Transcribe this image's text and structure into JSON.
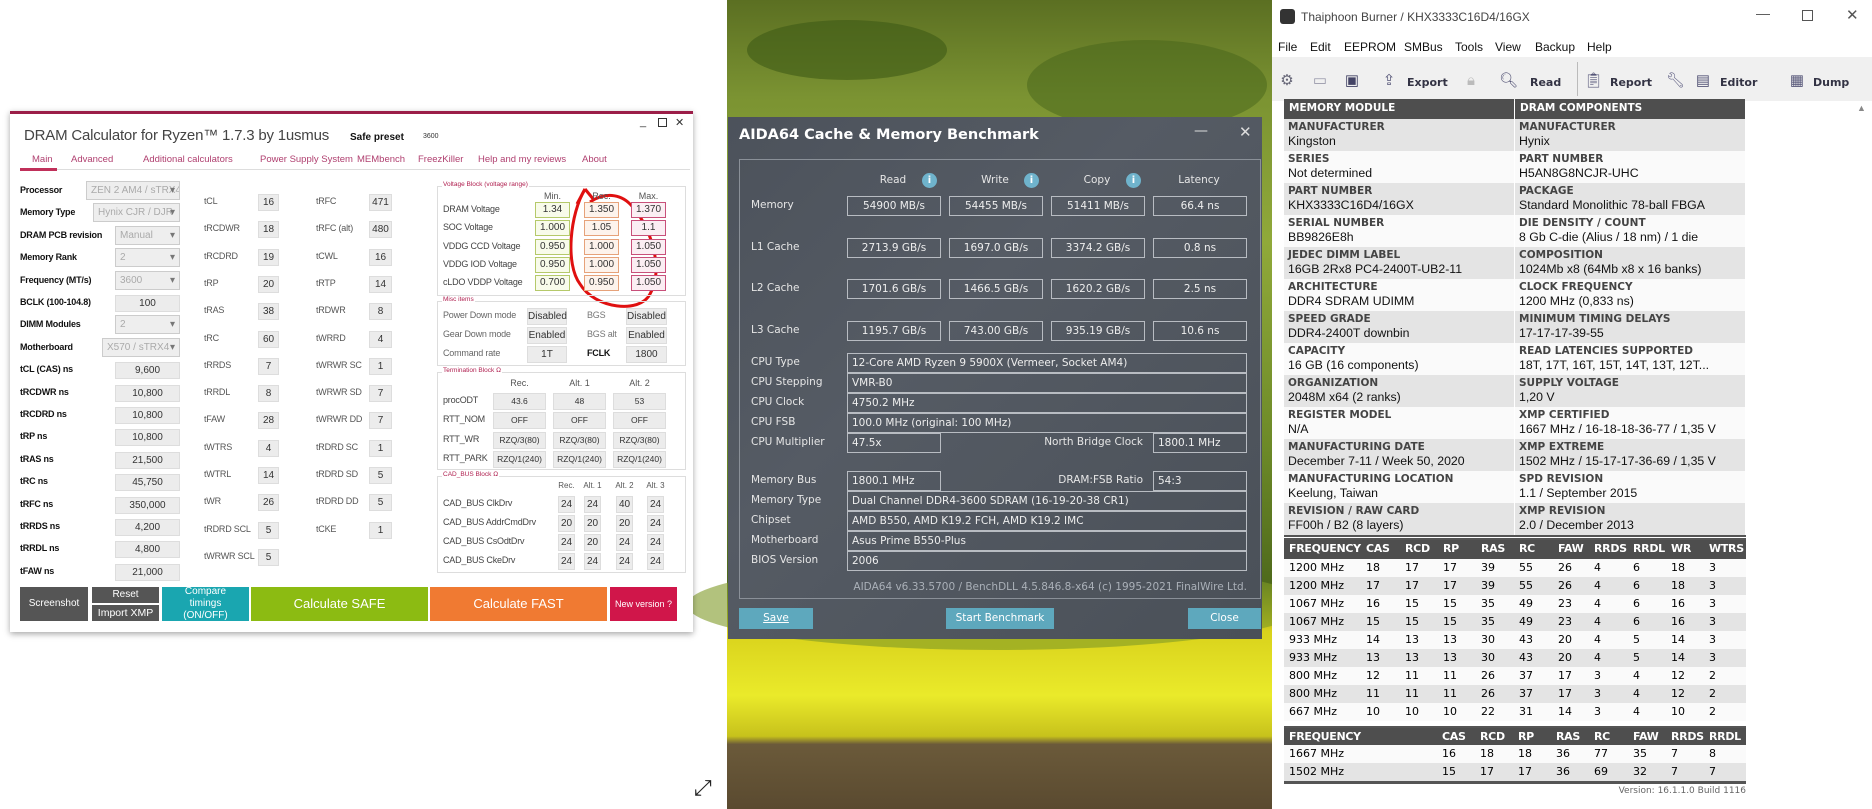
{
  "dram": {
    "title": "DRAM Calculator for Ryzen™ 1.7.3 by 1usmus",
    "safe_preset_label": "Safe preset",
    "safe_preset_value": "3600",
    "tabs": [
      "Main",
      "Advanced",
      "Additional calculators",
      "Power Supply System",
      "MEMbench",
      "FreezKiller",
      "Help and my reviews",
      "About"
    ],
    "fields": [
      {
        "label": "Processor",
        "value": "ZEN 2 AM4 / sTRX4",
        "type": "dropdown"
      },
      {
        "label": "Memory Type",
        "value": "Hynix CJR / DJR",
        "type": "dropdown"
      },
      {
        "label": "DRAM PCB revision",
        "value": "Manual",
        "type": "dropdown"
      },
      {
        "label": "Memory Rank",
        "value": "2",
        "type": "dropdown"
      },
      {
        "label": "Frequency (MT/s)",
        "value": "3600",
        "type": "dropdown"
      },
      {
        "label": "BCLK (100-104.8)",
        "value": "100",
        "type": "input"
      },
      {
        "label": "DIMM Modules",
        "value": "2",
        "type": "dropdown"
      },
      {
        "label": "Motherboard",
        "value": "X570 / sTRX4",
        "type": "dropdown"
      },
      {
        "label": "tCL (CAS) ns",
        "value": "9,600",
        "type": "output"
      },
      {
        "label": "tRCDWR ns",
        "value": "10,800",
        "type": "output"
      },
      {
        "label": "tRCDRD ns",
        "value": "10,800",
        "type": "output"
      },
      {
        "label": "tRP ns",
        "value": "10,800",
        "type": "output"
      },
      {
        "label": "tRAS ns",
        "value": "21,500",
        "type": "output"
      },
      {
        "label": "tRC ns",
        "value": "45,750",
        "type": "output"
      },
      {
        "label": "tRFC ns",
        "value": "350,000",
        "type": "output"
      },
      {
        "label": "tRRDS ns",
        "value": "4,200",
        "type": "output"
      },
      {
        "label": "tRRDL ns",
        "value": "4,800",
        "type": "output"
      },
      {
        "label": "tFAW ns",
        "value": "21,000",
        "type": "output"
      }
    ],
    "timings1": [
      {
        "label": "tCL",
        "value": "16"
      },
      {
        "label": "tRCDWR",
        "value": "18"
      },
      {
        "label": "tRCDRD",
        "value": "19"
      },
      {
        "label": "tRP",
        "value": "20"
      },
      {
        "label": "tRAS",
        "value": "38"
      },
      {
        "label": "tRC",
        "value": "60"
      },
      {
        "label": "tRRDS",
        "value": "7"
      },
      {
        "label": "tRRDL",
        "value": "8"
      },
      {
        "label": "tFAW",
        "value": "28"
      },
      {
        "label": "tWTRS",
        "value": "4"
      },
      {
        "label": "tWTRL",
        "value": "14"
      },
      {
        "label": "tWR",
        "value": "26"
      },
      {
        "label": "tRDRD SCL",
        "value": "5"
      },
      {
        "label": "tWRWR SCL",
        "value": "5"
      }
    ],
    "timings2": [
      {
        "label": "tRFC",
        "value": "471"
      },
      {
        "label": "tRFC (alt)",
        "value": "480"
      },
      {
        "label": "tCWL",
        "value": "16"
      },
      {
        "label": "tRTP",
        "value": "14"
      },
      {
        "label": "tRDWR",
        "value": "8"
      },
      {
        "label": "tWRRD",
        "value": "4"
      },
      {
        "label": "tWRWR SC",
        "value": "1"
      },
      {
        "label": "tWRWR SD",
        "value": "7"
      },
      {
        "label": "tWRWR DD",
        "value": "7"
      },
      {
        "label": "tRDRD SC",
        "value": "1"
      },
      {
        "label": "tRDRD SD",
        "value": "5"
      },
      {
        "label": "tRDRD DD",
        "value": "5"
      },
      {
        "label": "tCKE",
        "value": "1"
      }
    ],
    "voltage": {
      "title": "Voltage Block (voltage range)",
      "headers": [
        "Min.",
        "Rec.",
        "Max."
      ],
      "rows": [
        {
          "label": "DRAM Voltage",
          "values": [
            "1.34",
            "1.350",
            "1.370"
          ]
        },
        {
          "label": "SOC Voltage",
          "values": [
            "1.000",
            "1.05",
            "1.1"
          ]
        },
        {
          "label": "VDDG  CCD Voltage",
          "values": [
            "0.950",
            "1.000",
            "1.050"
          ]
        },
        {
          "label": "VDDG  IOD Voltage",
          "values": [
            "0.950",
            "1.000",
            "1.050"
          ]
        },
        {
          "label": "cLDO VDDP Voltage",
          "values": [
            "0.700",
            "0.950",
            "1.050"
          ]
        }
      ]
    },
    "misc": {
      "title": "Misc items",
      "rows": [
        {
          "label": "Power Down mode",
          "value": "Disabled",
          "label2": "BGS",
          "value2": "Disabled"
        },
        {
          "label": "Gear Down mode",
          "value": "Enabled",
          "label2": "BGS alt",
          "value2": "Enabled"
        },
        {
          "label": "Command rate",
          "value": "1T",
          "label2": "FCLK",
          "value2": "1800"
        }
      ]
    },
    "termination": {
      "title": "Termination Block Ω",
      "headers": [
        "Rec.",
        "Alt. 1",
        "Alt. 2"
      ],
      "rows": [
        {
          "label": "procODT",
          "values": [
            "43.6",
            "48",
            "53"
          ]
        },
        {
          "label": "RTT_NOM",
          "values": [
            "OFF",
            "OFF",
            "OFF"
          ]
        },
        {
          "label": "RTT_WR",
          "values": [
            "RZQ/3(80)",
            "RZQ/3(80)",
            "RZQ/3(80)"
          ]
        },
        {
          "label": "RTT_PARK",
          "values": [
            "RZQ/1(240)",
            "RZQ/1(240)",
            "RZQ/1(240)"
          ]
        }
      ]
    },
    "cad": {
      "title": "CAD_BUS Block Ω",
      "headers": [
        "Rec.",
        "Alt. 1",
        "Alt. 2",
        "Alt. 3"
      ],
      "rows": [
        {
          "label": "CAD_BUS ClkDrv",
          "values": [
            "24",
            "24",
            "40",
            "24"
          ]
        },
        {
          "label": "CAD_BUS AddrCmdDrv",
          "values": [
            "20",
            "20",
            "20",
            "24"
          ]
        },
        {
          "label": "CAD_BUS CsOdtDrv",
          "values": [
            "24",
            "20",
            "24",
            "24"
          ]
        },
        {
          "label": "CAD_BUS CkeDrv",
          "values": [
            "24",
            "24",
            "24",
            "24"
          ]
        }
      ]
    },
    "buttons": {
      "screenshot": "Screenshot",
      "reset": "Reset",
      "import_xmp": "Import XMP",
      "compare": "Compare timings (ON/OFF)",
      "safe": "Calculate SAFE",
      "fast": "Calculate FAST",
      "new_version": "New version ?"
    },
    "colors": {
      "accent": "#9b1e48",
      "safe": "#8cbb12",
      "fast": "#f07a32",
      "compare": "#1aa6b0",
      "new_version": "#d0164a",
      "dark": "#555555",
      "annotation": "#e01010"
    }
  },
  "aida": {
    "title": "AIDA64 Cache & Memory Benchmark",
    "headers": [
      "Read",
      "Write",
      "Copy",
      "Latency"
    ],
    "bench": [
      {
        "label": "Memory",
        "values": [
          "54900 MB/s",
          "54455 MB/s",
          "51411 MB/s",
          "66.4 ns"
        ]
      },
      {
        "label": "L1 Cache",
        "values": [
          "2713.9 GB/s",
          "1697.0 GB/s",
          "3374.2 GB/s",
          "0.8 ns"
        ]
      },
      {
        "label": "L2 Cache",
        "values": [
          "1701.6 GB/s",
          "1466.5 GB/s",
          "1620.2 GB/s",
          "2.5 ns"
        ]
      },
      {
        "label": "L3 Cache",
        "values": [
          "1195.7 GB/s",
          "743.00 GB/s",
          "935.19 GB/s",
          "10.6 ns"
        ]
      }
    ],
    "cpu": [
      {
        "label": "CPU Type",
        "value": "12-Core AMD Ryzen 9 5900X  (Vermeer, Socket AM4)"
      },
      {
        "label": "CPU Stepping",
        "value": "VMR-B0"
      },
      {
        "label": "CPU Clock",
        "value": "4750.2 MHz"
      },
      {
        "label": "CPU FSB",
        "value": "100.0 MHz  (original: 100 MHz)"
      }
    ],
    "cpu_multiplier": {
      "label": "CPU Multiplier",
      "value": "47.5x",
      "label2": "North Bridge Clock",
      "value2": "1800.1 MHz"
    },
    "memory_bus": {
      "label": "Memory Bus",
      "value": "1800.1 MHz",
      "label2": "DRAM:FSB Ratio",
      "value2": "54:3"
    },
    "sys": [
      {
        "label": "Memory Type",
        "value": "Dual Channel DDR4-3600 SDRAM  (16-19-20-38 CR1)"
      },
      {
        "label": "Chipset",
        "value": "AMD B550, AMD K19.2 FCH, AMD K19.2 IMC"
      },
      {
        "label": "Motherboard",
        "value": "Asus Prime B550-Plus"
      },
      {
        "label": "BIOS Version",
        "value": "2006"
      }
    ],
    "footer": "AIDA64 v6.33.5700 / BenchDLL 4.5.846.8-x64  (c) 1995-2021 FinalWire Ltd.",
    "buttons": {
      "save": "Save",
      "start": "Start Benchmark",
      "close": "Close"
    }
  },
  "thaiphoon": {
    "title": "Thaiphoon Burner / KHX3333C16D4/16GX",
    "menu": [
      "File",
      "Edit",
      "EEPROM",
      "SMBus",
      "Tools",
      "View",
      "Backup",
      "Help"
    ],
    "toolbar": {
      "export": "Export",
      "read": "Read",
      "report": "Report",
      "editor": "Editor",
      "dump": "Dump"
    },
    "col_headers": [
      "MEMORY MODULE",
      "DRAM COMPONENTS"
    ],
    "module": [
      [
        "MANUFACTURER",
        "Kingston"
      ],
      [
        "SERIES",
        "Not determined"
      ],
      [
        "PART NUMBER",
        "KHX3333C16D4/16GX"
      ],
      [
        "SERIAL NUMBER",
        "BB9826E8h"
      ],
      [
        "JEDEC DIMM LABEL",
        "16GB 2Rx8 PC4-2400T-UB2-11"
      ],
      [
        "ARCHITECTURE",
        "DDR4 SDRAM UDIMM"
      ],
      [
        "SPEED GRADE",
        "DDR4-2400T downbin"
      ],
      [
        "CAPACITY",
        "16 GB (16 components)"
      ],
      [
        "ORGANIZATION",
        "2048M x64 (2 ranks)"
      ],
      [
        "REGISTER MODEL",
        "N/A"
      ],
      [
        "MANUFACTURING DATE",
        "December 7-11 / Week 50, 2020"
      ],
      [
        "MANUFACTURING LOCATION",
        "Keelung, Taiwan"
      ],
      [
        "REVISION / RAW CARD",
        "FF00h / B2 (8 layers)"
      ]
    ],
    "dram": [
      [
        "MANUFACTURER",
        "Hynix"
      ],
      [
        "PART NUMBER",
        "H5AN8G8NCJR-UHC"
      ],
      [
        "PACKAGE",
        "Standard Monolithic 78-ball FBGA"
      ],
      [
        "DIE DENSITY / COUNT",
        "8 Gb C-die (Alius / 18 nm) / 1 die"
      ],
      [
        "COMPOSITION",
        "1024Mb x8 (64Mb x8 x 16 banks)"
      ],
      [
        "CLOCK FREQUENCY",
        "1200 MHz (0,833 ns)"
      ],
      [
        "MINIMUM TIMING DELAYS",
        "17-17-17-39-55"
      ],
      [
        "READ LATENCIES SUPPORTED",
        "18T, 17T, 16T, 15T, 14T, 13T, 12T..."
      ],
      [
        "SUPPLY VOLTAGE",
        "1,20 V"
      ],
      [
        "XMP CERTIFIED",
        "1667 MHz / 16-18-18-36-77 / 1,35 V"
      ],
      [
        "XMP EXTREME",
        "1502 MHz / 15-17-17-36-69 / 1,35 V"
      ],
      [
        "SPD REVISION",
        "1.1 / September 2015"
      ],
      [
        "XMP REVISION",
        "2.0 / December 2013"
      ]
    ],
    "jedec_table": {
      "headers": [
        "FREQUENCY",
        "CAS",
        "RCD",
        "RP",
        "RAS",
        "RC",
        "FAW",
        "RRDS",
        "RRDL",
        "WR",
        "WTRS"
      ],
      "rows": [
        [
          "1200 MHz",
          "18",
          "17",
          "17",
          "39",
          "55",
          "26",
          "4",
          "6",
          "18",
          "3"
        ],
        [
          "1200 MHz",
          "17",
          "17",
          "17",
          "39",
          "55",
          "26",
          "4",
          "6",
          "18",
          "3"
        ],
        [
          "1067 MHz",
          "16",
          "15",
          "15",
          "35",
          "49",
          "23",
          "4",
          "6",
          "16",
          "3"
        ],
        [
          "1067 MHz",
          "15",
          "15",
          "15",
          "35",
          "49",
          "23",
          "4",
          "6",
          "16",
          "3"
        ],
        [
          "933 MHz",
          "14",
          "13",
          "13",
          "30",
          "43",
          "20",
          "4",
          "5",
          "14",
          "3"
        ],
        [
          "933 MHz",
          "13",
          "13",
          "13",
          "30",
          "43",
          "20",
          "4",
          "5",
          "14",
          "3"
        ],
        [
          "800 MHz",
          "12",
          "11",
          "11",
          "26",
          "37",
          "17",
          "3",
          "4",
          "12",
          "2"
        ],
        [
          "800 MHz",
          "11",
          "11",
          "11",
          "26",
          "37",
          "17",
          "3",
          "4",
          "12",
          "2"
        ],
        [
          "667 MHz",
          "10",
          "10",
          "10",
          "22",
          "31",
          "14",
          "3",
          "4",
          "10",
          "2"
        ]
      ]
    },
    "xmp_table": {
      "headers": [
        "FREQUENCY",
        "CAS",
        "RCD",
        "RP",
        "RAS",
        "RC",
        "FAW",
        "RRDS",
        "RRDL"
      ],
      "rows": [
        [
          "1667 MHz",
          "16",
          "18",
          "18",
          "36",
          "77",
          "35",
          "7",
          "8"
        ],
        [
          "1502 MHz",
          "15",
          "17",
          "17",
          "36",
          "69",
          "32",
          "7",
          "7"
        ]
      ]
    },
    "version": "Version: 16.1.1.0 Build 1116"
  }
}
